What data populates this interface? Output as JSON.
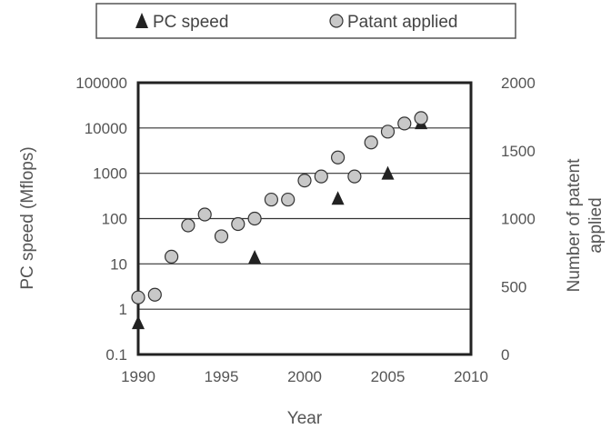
{
  "chart_data": {
    "type": "scatter",
    "legend": {
      "position": "top-center",
      "entries": [
        {
          "label": "PC speed",
          "marker": "triangle",
          "color": "#222222"
        },
        {
          "label": "Patant applied",
          "marker": "circle",
          "color": "#c8c8c8"
        }
      ]
    },
    "xlabel": "Year",
    "ylabel_left": "PC speed (Mflops)",
    "ylabel_right_lines": [
      "Number of patent",
      "applied"
    ],
    "x_axis": {
      "range": [
        1990,
        2010
      ],
      "ticks": [
        "1990",
        "1995",
        "2000",
        "2005",
        "2010"
      ]
    },
    "y_left": {
      "scale": "log",
      "range": [
        0.1,
        100000
      ],
      "ticks": [
        "100000",
        "10000",
        "1000",
        "100",
        "10",
        "1",
        "0.1"
      ]
    },
    "y_right": {
      "scale": "linear",
      "range": [
        0,
        2000
      ],
      "ticks": [
        "2000",
        "1500",
        "1000",
        "500",
        "0"
      ]
    },
    "grid": "horizontal",
    "series": [
      {
        "name": "PC speed",
        "axis": "left",
        "points": [
          {
            "x": 1990,
            "y": 0.5
          },
          {
            "x": 1997,
            "y": 14
          },
          {
            "x": 2002,
            "y": 280
          },
          {
            "x": 2005,
            "y": 1000
          },
          {
            "x": 2007,
            "y": 13000
          }
        ]
      },
      {
        "name": "Patant applied",
        "axis": "right",
        "points": [
          {
            "x": 1990,
            "y": 420
          },
          {
            "x": 1991,
            "y": 440
          },
          {
            "x": 1992,
            "y": 720
          },
          {
            "x": 1993,
            "y": 950
          },
          {
            "x": 1994,
            "y": 1030
          },
          {
            "x": 1995,
            "y": 870
          },
          {
            "x": 1996,
            "y": 960
          },
          {
            "x": 1997,
            "y": 1000
          },
          {
            "x": 1998,
            "y": 1140
          },
          {
            "x": 1999,
            "y": 1140
          },
          {
            "x": 2000,
            "y": 1280
          },
          {
            "x": 2001,
            "y": 1310
          },
          {
            "x": 2002,
            "y": 1450
          },
          {
            "x": 2003,
            "y": 1310
          },
          {
            "x": 2004,
            "y": 1560
          },
          {
            "x": 2005,
            "y": 1640
          },
          {
            "x": 2006,
            "y": 1700
          },
          {
            "x": 2007,
            "y": 1740
          }
        ]
      }
    ]
  }
}
